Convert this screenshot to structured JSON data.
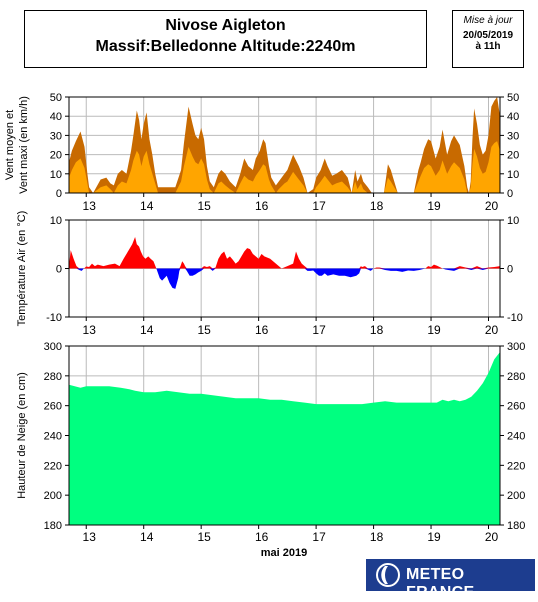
{
  "header": {
    "title_line1": "Nivose Aigleton",
    "title_line2": "Massif:Belledonne Altitude:2240m"
  },
  "update": {
    "label": "Mise à jour",
    "date": "20/05/2019",
    "time": "à 11h"
  },
  "logo": {
    "text": "METEO FRANCE"
  },
  "colors": {
    "wind_max": "#c86a00",
    "wind_mean": "#ffa500",
    "temp_pos": "#ff0000",
    "temp_neg": "#0000ff",
    "snow": "#00ff80",
    "grid": "#bbbbbb"
  },
  "chart_data": [
    {
      "type": "area",
      "panel": "wind",
      "ylabel": [
        "Vent moyen et",
        "Vent maxi (en km/h)"
      ],
      "ylim": [
        0,
        50
      ],
      "yticks": [
        0,
        10,
        20,
        30,
        40,
        50
      ],
      "xlim": [
        12.7,
        20.2
      ],
      "days": [
        13,
        14,
        15,
        16,
        17,
        18,
        19,
        20
      ],
      "day_labels": [
        "13",
        "14",
        "15",
        "16",
        "17",
        "18",
        "19",
        "20"
      ],
      "grid": true,
      "series": [
        {
          "key": "max",
          "x": [
            12.7,
            12.75,
            12.82,
            12.9,
            12.97,
            13.02,
            13.05,
            13.12,
            13.25,
            13.35,
            13.42,
            13.48,
            13.55,
            13.62,
            13.7,
            13.78,
            13.82,
            13.88,
            13.92,
            13.96,
            14.0,
            14.05,
            14.1,
            14.15,
            14.2,
            14.25,
            14.35,
            14.45,
            14.55,
            14.65,
            14.7,
            14.78,
            14.85,
            14.9,
            14.95,
            15.0,
            15.05,
            15.1,
            15.15,
            15.22,
            15.3,
            15.35,
            15.42,
            15.5,
            15.6,
            15.68,
            15.75,
            15.82,
            15.9,
            15.95,
            16.02,
            16.08,
            16.12,
            16.18,
            16.22,
            16.3,
            16.35,
            16.45,
            16.5,
            16.6,
            16.7,
            16.78,
            16.85,
            16.95,
            17.0,
            17.08,
            17.15,
            17.2,
            17.28,
            17.35,
            17.45,
            17.55,
            17.62,
            17.68,
            17.72,
            17.78,
            17.82,
            17.9,
            17.97,
            18.0,
            18.1,
            18.18,
            18.25,
            18.3,
            18.42,
            18.47,
            18.55,
            18.65,
            18.7,
            18.78,
            18.82,
            18.88,
            18.95,
            19.0,
            19.08,
            19.15,
            19.2,
            19.28,
            19.35,
            19.4,
            19.5,
            19.58,
            19.63,
            19.66,
            19.69,
            19.72,
            19.75,
            19.8,
            19.85,
            19.9,
            19.95,
            20.0,
            20.05,
            20.1,
            20.15,
            20.2
          ],
          "values": [
            16,
            22,
            27,
            32,
            24,
            10,
            3,
            0,
            7,
            8,
            5,
            4,
            10,
            12,
            10,
            22,
            30,
            43,
            38,
            28,
            36,
            42,
            28,
            20,
            10,
            3,
            3,
            3,
            3,
            12,
            26,
            45,
            36,
            30,
            28,
            34,
            28,
            14,
            6,
            3,
            10,
            12,
            10,
            6,
            3,
            10,
            18,
            14,
            12,
            18,
            22,
            28,
            26,
            14,
            8,
            4,
            6,
            10,
            12,
            20,
            14,
            8,
            0,
            2,
            8,
            12,
            18,
            14,
            9,
            10,
            12,
            8,
            0,
            12,
            6,
            10,
            6,
            3,
            0,
            0,
            0,
            0,
            15,
            12,
            0,
            0,
            0,
            0,
            0,
            12,
            16,
            23,
            28,
            27,
            18,
            24,
            33,
            20,
            27,
            30,
            25,
            14,
            3,
            0,
            6,
            28,
            44,
            36,
            25,
            20,
            22,
            30,
            45,
            48,
            50,
            40
          ]
        },
        {
          "key": "mean",
          "x": [
            12.7,
            12.75,
            12.82,
            12.9,
            12.97,
            13.02,
            13.05,
            13.12,
            13.25,
            13.35,
            13.42,
            13.48,
            13.55,
            13.62,
            13.7,
            13.78,
            13.82,
            13.88,
            13.92,
            13.96,
            14.0,
            14.05,
            14.1,
            14.15,
            14.2,
            14.25,
            14.35,
            14.45,
            14.55,
            14.65,
            14.7,
            14.78,
            14.85,
            14.9,
            14.95,
            15.0,
            15.05,
            15.1,
            15.15,
            15.22,
            15.3,
            15.35,
            15.42,
            15.5,
            15.6,
            15.68,
            15.75,
            15.82,
            15.9,
            15.95,
            16.02,
            16.08,
            16.12,
            16.18,
            16.22,
            16.3,
            16.35,
            16.45,
            16.5,
            16.6,
            16.7,
            16.78,
            16.85,
            16.95,
            17.0,
            17.08,
            17.15,
            17.2,
            17.28,
            17.35,
            17.45,
            17.55,
            17.62,
            17.68,
            17.72,
            17.78,
            17.82,
            17.9,
            17.97,
            18.0,
            18.1,
            18.18,
            18.25,
            18.3,
            18.42,
            18.47,
            18.55,
            18.65,
            18.7,
            18.78,
            18.82,
            18.88,
            18.95,
            19.0,
            19.08,
            19.15,
            19.2,
            19.28,
            19.35,
            19.4,
            19.5,
            19.58,
            19.63,
            19.66,
            19.69,
            19.72,
            19.75,
            19.8,
            19.85,
            19.9,
            19.95,
            20.0,
            20.05,
            20.1,
            20.15,
            20.2
          ],
          "values": [
            8,
            12,
            16,
            18,
            13,
            5,
            0,
            0,
            3,
            4,
            2,
            0,
            4,
            6,
            5,
            12,
            17,
            22,
            20,
            14,
            19,
            22,
            15,
            10,
            5,
            0,
            0,
            0,
            0,
            6,
            14,
            24,
            19,
            16,
            15,
            18,
            15,
            7,
            2,
            0,
            5,
            6,
            4,
            2,
            0,
            5,
            9,
            7,
            6,
            9,
            12,
            15,
            14,
            7,
            4,
            0,
            2,
            5,
            6,
            11,
            7,
            4,
            0,
            0,
            3,
            6,
            9,
            7,
            4,
            5,
            6,
            3,
            0,
            6,
            2,
            5,
            2,
            0,
            0,
            0,
            0,
            0,
            8,
            6,
            0,
            0,
            0,
            0,
            0,
            6,
            9,
            13,
            15,
            14,
            9,
            12,
            17,
            10,
            14,
            16,
            13,
            7,
            0,
            0,
            3,
            15,
            23,
            19,
            13,
            10,
            11,
            16,
            24,
            26,
            27,
            22
          ]
        }
      ]
    },
    {
      "type": "area",
      "panel": "temperature",
      "ylabel": [
        "Température Air (en °C)"
      ],
      "ylim": [
        -10,
        10
      ],
      "yticks": [
        -10,
        0,
        10
      ],
      "xlim": [
        12.7,
        20.2
      ],
      "days": [
        13,
        14,
        15,
        16,
        17,
        18,
        19,
        20
      ],
      "day_labels": [
        "13",
        "14",
        "15",
        "16",
        "17",
        "18",
        "19",
        "20"
      ],
      "grid": true,
      "series": [
        {
          "key": "temp",
          "x": [
            12.7,
            12.73,
            12.78,
            12.83,
            12.88,
            12.92,
            12.96,
            13.0,
            13.05,
            13.1,
            13.15,
            13.2,
            13.3,
            13.4,
            13.5,
            13.58,
            13.65,
            13.7,
            13.75,
            13.8,
            13.85,
            13.88,
            13.92,
            13.95,
            13.99,
            14.03,
            14.08,
            14.12,
            14.17,
            14.22,
            14.28,
            14.32,
            14.36,
            14.4,
            14.45,
            14.5,
            14.55,
            14.6,
            14.62,
            14.64,
            14.67,
            14.7,
            14.72,
            14.75,
            14.8,
            14.85,
            14.9,
            14.95,
            15.0,
            15.05,
            15.1,
            15.15,
            15.2,
            15.25,
            15.3,
            15.35,
            15.4,
            15.45,
            15.5,
            15.55,
            15.6,
            15.65,
            15.7,
            15.75,
            15.8,
            15.85,
            15.9,
            15.95,
            16.0,
            16.05,
            16.1,
            16.2,
            16.3,
            16.4,
            16.5,
            16.6,
            16.65,
            16.7,
            16.75,
            16.8,
            16.85,
            16.9,
            16.95,
            17.0,
            17.05,
            17.1,
            17.15,
            17.2,
            17.3,
            17.4,
            17.5,
            17.6,
            17.7,
            17.75,
            17.78,
            17.8,
            17.85,
            17.9,
            17.95,
            18.0,
            18.05,
            18.1,
            18.2,
            18.3,
            18.4,
            18.5,
            18.6,
            18.7,
            18.8,
            18.9,
            18.95,
            19.0,
            19.05,
            19.1,
            19.15,
            19.2,
            19.25,
            19.3,
            19.4,
            19.5,
            19.6,
            19.7,
            19.8,
            19.9,
            20.0,
            20.1,
            20.2
          ],
          "values": [
            0.5,
            3.8,
            2.0,
            0.5,
            -0.3,
            -0.5,
            0.0,
            0.4,
            0.3,
            1.0,
            0.5,
            0.8,
            0.5,
            0.8,
            1.0,
            0.5,
            2.0,
            3.0,
            4.0,
            5.0,
            6.5,
            5.0,
            4.5,
            3.5,
            2.5,
            2.0,
            2.5,
            2.0,
            1.5,
            0.0,
            -2.0,
            -2.5,
            -2.0,
            -1.5,
            -3.0,
            -4.0,
            -4.2,
            -2.0,
            -0.5,
            0.5,
            1.5,
            1.0,
            0.5,
            -0.5,
            -1.5,
            -1.5,
            -1.2,
            -0.8,
            -0.5,
            0.5,
            0.3,
            0.5,
            -0.5,
            0.2,
            2.0,
            3.0,
            3.5,
            2.0,
            2.5,
            1.8,
            1.0,
            1.5,
            2.5,
            3.5,
            4.2,
            4.0,
            3.0,
            2.5,
            2.0,
            3.0,
            2.5,
            2.0,
            1.0,
            0.0,
            0.5,
            1.0,
            3.5,
            2.0,
            1.0,
            0.5,
            -0.5,
            -0.5,
            -0.4,
            -1.0,
            -1.5,
            -1.5,
            -1.0,
            -1.5,
            -1.2,
            -1.5,
            -1.5,
            -1.8,
            -1.5,
            -1.0,
            0.5,
            0.3,
            0.5,
            -0.2,
            -0.5,
            0.0,
            0.2,
            0.2,
            -0.3,
            -0.5,
            -0.5,
            -0.7,
            -0.4,
            -0.5,
            -0.3,
            0.0,
            0.5,
            0.3,
            0.8,
            0.6,
            0.3,
            0.0,
            -0.2,
            -0.3,
            -0.5,
            0.5,
            0.2,
            -0.3,
            0.5,
            -0.3,
            0.2,
            0.3,
            0.5
          ]
        }
      ]
    },
    {
      "type": "area",
      "panel": "snow",
      "ylabel": [
        "Hauteur de Neige (en cm)"
      ],
      "xlabel": "mai 2019",
      "ylim": [
        180,
        300
      ],
      "yticks": [
        180,
        200,
        220,
        240,
        260,
        280,
        300
      ],
      "xlim": [
        12.7,
        20.2
      ],
      "days": [
        13,
        14,
        15,
        16,
        17,
        18,
        19,
        20
      ],
      "day_labels": [
        "13",
        "14",
        "15",
        "16",
        "17",
        "18",
        "19",
        "20"
      ],
      "grid": true,
      "series": [
        {
          "key": "snow",
          "x": [
            12.7,
            12.8,
            12.9,
            13.0,
            13.2,
            13.4,
            13.6,
            13.75,
            13.85,
            14.0,
            14.2,
            14.4,
            14.6,
            14.8,
            15.0,
            15.2,
            15.4,
            15.6,
            15.8,
            16.0,
            16.2,
            16.4,
            16.6,
            16.8,
            17.0,
            17.2,
            17.4,
            17.6,
            17.8,
            18.0,
            18.2,
            18.4,
            18.6,
            18.8,
            19.0,
            19.1,
            19.2,
            19.3,
            19.4,
            19.5,
            19.6,
            19.7,
            19.8,
            19.9,
            20.0,
            20.1,
            20.2
          ],
          "values": [
            274,
            273,
            272,
            273,
            273,
            273,
            272,
            271,
            270,
            269,
            269,
            270,
            269,
            268,
            268,
            267,
            266,
            265,
            265,
            265,
            264,
            264,
            263,
            262,
            261,
            261,
            261,
            261,
            261,
            262,
            263,
            262,
            262,
            262,
            262,
            262,
            264,
            263,
            264,
            263,
            264,
            266,
            270,
            275,
            282,
            291,
            296
          ]
        }
      ]
    }
  ]
}
